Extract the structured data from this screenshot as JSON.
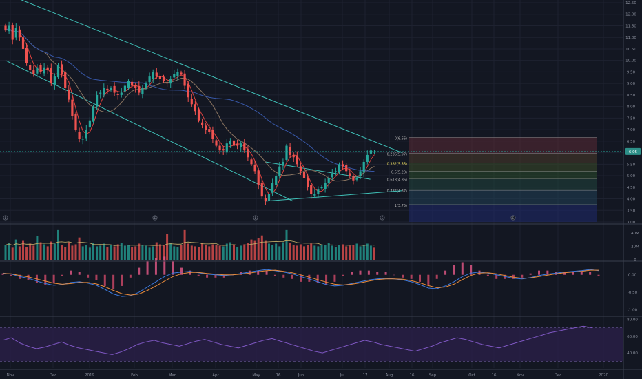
{
  "colors": {
    "background": "#131722",
    "grid": "#1e2230",
    "separator": "#3a3f4d",
    "axis_text": "#8a8f9c",
    "up": "#26a69a",
    "down": "#ef5350",
    "trend_channel": "#3fc1b8",
    "ma_fast": "#e0433f",
    "ma_mid": "#8a7460",
    "ma_slow": "#3858a8",
    "price_label_bg": "#2d8f88",
    "macd_line": "#3d7be0",
    "signal_line": "#e88a3a",
    "rsi_band": "#2a1f48",
    "rsi_line": "#7e57c2"
  },
  "chart_data": [
    {
      "type": "candlestick",
      "panel": "price",
      "price_axis_ticks": [
        "12.50",
        "12.00",
        "11.50",
        "11.00",
        "10.50",
        "10.00",
        "9.50",
        "9.00",
        "8.50",
        "8.00",
        "7.50",
        "7.00",
        "6.50",
        "6.00",
        "5.50",
        "5.00",
        "4.50",
        "4.00",
        "3.50",
        "3.00"
      ],
      "ylim": [
        3.0,
        12.5
      ],
      "current_price_label": "6.05",
      "current_price": 6.05,
      "time_axis_labels": [
        "Nov",
        "Dec",
        "2019",
        "Feb",
        "Mar",
        "Apr",
        "May",
        "16",
        "Jun",
        "Jul",
        "17",
        "Aug",
        "16",
        "Sep",
        "Oct",
        "16",
        "Nov",
        "Dec",
        "2020"
      ],
      "earnings_markers": [
        "E",
        "E",
        "E",
        "E",
        "E"
      ],
      "close_path": [
        11.3,
        11.5,
        10.9,
        11.4,
        11.0,
        10.5,
        9.9,
        9.6,
        9.4,
        9.7,
        9.5,
        9.7,
        9.6,
        9.0,
        9.3,
        9.8,
        9.4,
        8.8,
        8.3,
        7.6,
        7.0,
        6.6,
        6.6,
        7.0,
        7.4,
        8.0,
        8.5,
        8.6,
        8.8,
        8.7,
        8.8,
        8.6,
        8.5,
        8.6,
        8.9,
        9.1,
        8.9,
        8.8,
        8.6,
        8.8,
        9.0,
        9.3,
        9.5,
        9.3,
        9.2,
        9.1,
        9.0,
        9.2,
        9.4,
        9.5,
        9.4,
        8.9,
        8.4,
        8.1,
        7.8,
        7.4,
        7.2,
        7.0,
        6.9,
        6.6,
        6.3,
        6.1,
        6.1,
        6.4,
        6.5,
        6.3,
        6.3,
        6.4,
        6.1,
        5.8,
        5.5,
        5.2,
        4.6,
        4.1,
        3.9,
        4.2,
        4.7,
        5.0,
        5.4,
        5.6,
        6.3,
        5.9,
        5.8,
        5.5,
        5.2,
        4.9,
        4.5,
        4.2,
        4.2,
        4.4,
        4.5,
        4.7,
        4.9,
        5.1,
        5.2,
        5.5,
        5.4,
        5.2,
        5.0,
        4.8,
        4.9,
        5.2,
        5.6,
        5.9,
        6.1,
        6.05
      ],
      "trend_channel": {
        "upper_line": {
          "start": [
            0,
            12.9
          ],
          "end": [
            105,
            6.0
          ]
        },
        "lower_line": {
          "start": [
            0,
            10.0
          ],
          "end": [
            74,
            3.9
          ]
        },
        "triangle_upper": {
          "start": [
            74,
            5.6
          ],
          "end": [
            96,
            4.85
          ]
        },
        "triangle_lower": {
          "start": [
            74,
            3.9
          ],
          "end": [
            105,
            4.35
          ]
        }
      },
      "fibonacci_retracement": {
        "levels": [
          {
            "label": "0(6.66)",
            "price": 6.66
          },
          {
            "label": "0.236(5.97)",
            "price": 5.97
          },
          {
            "label": "0.382(5.55)",
            "price": 5.55
          },
          {
            "label": "0.5(5.20)",
            "price": 5.2
          },
          {
            "label": "0.618(4.86)",
            "price": 4.86
          },
          {
            "label": "0.786(4.37)",
            "price": 4.37
          },
          {
            "label": "1(3.75)",
            "price": 3.75
          }
        ],
        "zone_colors": [
          "#5a2a34",
          "#4a3a2a",
          "#3a4a28",
          "#2a4a2a",
          "#20443c",
          "#203f55",
          "#1f2a6e"
        ]
      },
      "moving_averages": [
        "fast",
        "mid",
        "slow"
      ]
    },
    {
      "type": "bar",
      "panel": "volume",
      "axis_ticks": [
        "40M",
        "20M",
        "0"
      ],
      "ylim": [
        0,
        50
      ],
      "values": [
        22,
        25,
        18,
        30,
        20,
        28,
        19,
        24,
        21,
        35,
        26,
        23,
        20,
        27,
        24,
        44,
        22,
        19,
        26,
        21,
        23,
        33,
        20,
        22,
        18,
        25,
        20,
        21,
        24,
        19,
        22,
        20,
        23,
        25,
        21,
        22,
        19,
        20,
        24,
        22,
        21,
        18,
        20,
        26,
        23,
        22,
        38,
        25,
        20,
        19,
        22,
        44,
        24,
        21,
        20,
        19,
        25,
        22,
        20,
        23,
        22,
        21,
        20,
        24,
        26,
        22,
        19,
        21,
        23,
        25,
        30,
        28,
        32,
        36,
        28,
        24,
        22,
        24,
        20,
        26,
        44,
        25,
        22,
        21,
        23,
        20,
        22,
        24,
        21,
        20,
        23,
        22,
        25,
        21,
        19,
        22,
        23,
        20,
        21,
        22,
        24,
        20,
        22,
        24,
        21,
        18
      ]
    },
    {
      "type": "line",
      "panel": "macd",
      "axis_ticks": [
        "0.00",
        "-0.50",
        "-1.00"
      ],
      "ylim": [
        -1.15,
        0.35
      ],
      "series": [
        {
          "key": "macd",
          "values": [
            0.05,
            0.02,
            -0.05,
            -0.1,
            -0.18,
            -0.25,
            -0.3,
            -0.28,
            -0.22,
            -0.2,
            -0.24,
            -0.3,
            -0.42,
            -0.55,
            -0.62,
            -0.6,
            -0.5,
            -0.35,
            -0.2,
            -0.05,
            0.05,
            0.08,
            0.1,
            0.06,
            0.02,
            0.0,
            -0.02,
            0.0,
            0.04,
            0.08,
            0.12,
            0.15,
            0.12,
            0.08,
            0.03,
            -0.05,
            -0.12,
            -0.2,
            -0.28,
            -0.32,
            -0.3,
            -0.25,
            -0.2,
            -0.15,
            -0.12,
            -0.1,
            -0.12,
            -0.15,
            -0.2,
            -0.28,
            -0.38,
            -0.4,
            -0.32,
            -0.2,
            -0.05,
            0.05,
            0.08,
            0.05,
            0.0,
            -0.05,
            -0.1,
            -0.12,
            -0.08,
            -0.02,
            0.02,
            0.05,
            0.08,
            0.1,
            0.12,
            0.15,
            0.12
          ]
        },
        {
          "key": "signal",
          "values": [
            0.04,
            0.03,
            -0.02,
            -0.06,
            -0.12,
            -0.18,
            -0.24,
            -0.27,
            -0.25,
            -0.22,
            -0.22,
            -0.26,
            -0.34,
            -0.45,
            -0.54,
            -0.58,
            -0.55,
            -0.45,
            -0.32,
            -0.18,
            -0.05,
            0.03,
            0.07,
            0.07,
            0.04,
            0.02,
            0.0,
            0.0,
            0.02,
            0.05,
            0.09,
            0.12,
            0.13,
            0.1,
            0.06,
            0.0,
            -0.07,
            -0.14,
            -0.21,
            -0.27,
            -0.29,
            -0.27,
            -0.23,
            -0.18,
            -0.14,
            -0.12,
            -0.12,
            -0.13,
            -0.17,
            -0.23,
            -0.31,
            -0.37,
            -0.35,
            -0.27,
            -0.14,
            -0.02,
            0.05,
            0.06,
            0.03,
            -0.02,
            -0.07,
            -0.1,
            -0.09,
            -0.05,
            -0.01,
            0.03,
            0.06,
            0.08,
            0.1,
            0.13,
            0.13
          ]
        }
      ]
    },
    {
      "type": "line",
      "panel": "rsi",
      "axis_ticks": [
        "80.00",
        "60.00",
        "40.00"
      ],
      "ylim": [
        22,
        82
      ],
      "band": [
        30,
        70
      ],
      "values": [
        55,
        58,
        52,
        48,
        45,
        47,
        50,
        53,
        49,
        46,
        44,
        42,
        40,
        38,
        41,
        45,
        50,
        53,
        55,
        52,
        50,
        48,
        51,
        54,
        56,
        53,
        50,
        48,
        46,
        49,
        52,
        55,
        57,
        54,
        51,
        48,
        45,
        42,
        40,
        43,
        46,
        49,
        52,
        55,
        53,
        50,
        48,
        46,
        44,
        42,
        45,
        48,
        52,
        55,
        58,
        56,
        53,
        50,
        48,
        46,
        49,
        52,
        55,
        58,
        61,
        64,
        66,
        68,
        70,
        72,
        70
      ]
    }
  ]
}
